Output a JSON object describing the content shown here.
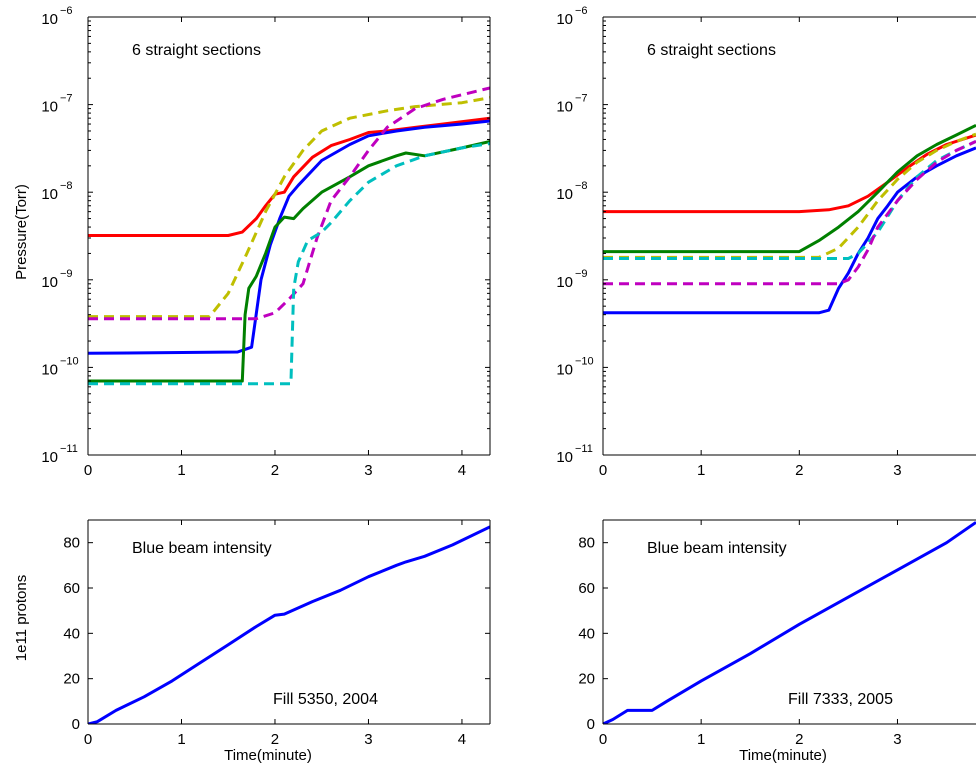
{
  "figure_colors": {
    "red": "#ff0000",
    "blue": "#0000ff",
    "green": "#008000",
    "yellow": "#bfbf00",
    "magenta": "#bf00bf",
    "cyan": "#00bfbf"
  },
  "chart_data": [
    {
      "type": "line",
      "annotation": "6 straight sections",
      "xlabel": "",
      "ylabel": "Pressure(Torr)",
      "y_scale": "log",
      "xlim": [
        0,
        4.3
      ],
      "ylim": [
        1e-11,
        1e-06
      ],
      "x_ticks": [
        "0",
        "1",
        "2",
        "3",
        "4"
      ],
      "y_ticks": [
        {
          "base": "10",
          "exp": "−6"
        },
        {
          "base": "10",
          "exp": "−7"
        },
        {
          "base": "10",
          "exp": "−8"
        },
        {
          "base": "10",
          "exp": "−9"
        },
        {
          "base": "10",
          "exp": "−10"
        },
        {
          "base": "10",
          "exp": "−11"
        }
      ],
      "series": [
        {
          "color": "#ff0000",
          "style": "solid",
          "points": [
            [
              0,
              3.2e-09
            ],
            [
              1.5,
              3.2e-09
            ],
            [
              1.65,
              3.5e-09
            ],
            [
              1.8,
              5e-09
            ],
            [
              1.9,
              7e-09
            ],
            [
              2.0,
              9.5e-09
            ],
            [
              2.1,
              1e-08
            ],
            [
              2.2,
              1.5e-08
            ],
            [
              2.4,
              2.5e-08
            ],
            [
              2.6,
              3.4e-08
            ],
            [
              2.8,
              4e-08
            ],
            [
              3.0,
              4.8e-08
            ],
            [
              3.2,
              5e-08
            ],
            [
              3.5,
              5.5e-08
            ],
            [
              3.8,
              6e-08
            ],
            [
              4.3,
              7e-08
            ]
          ]
        },
        {
          "color": "#0000ff",
          "style": "solid",
          "points": [
            [
              0,
              1.45e-10
            ],
            [
              1.6,
              1.5e-10
            ],
            [
              1.75,
              1.7e-10
            ],
            [
              1.85,
              1e-09
            ],
            [
              1.95,
              2.5e-09
            ],
            [
              2.05,
              5e-09
            ],
            [
              2.15,
              9e-09
            ],
            [
              2.25,
              1.2e-08
            ],
            [
              2.5,
              2.3e-08
            ],
            [
              2.8,
              3.5e-08
            ],
            [
              3.0,
              4.4e-08
            ],
            [
              3.3,
              5e-08
            ],
            [
              3.6,
              5.5e-08
            ],
            [
              4.0,
              6e-08
            ],
            [
              4.3,
              6.5e-08
            ]
          ]
        },
        {
          "color": "#008000",
          "style": "solid",
          "points": [
            [
              0,
              7e-11
            ],
            [
              1.65,
              7e-11
            ],
            [
              1.68,
              4e-10
            ],
            [
              1.72,
              8e-10
            ],
            [
              1.8,
              1.1e-09
            ],
            [
              1.9,
              2e-09
            ],
            [
              2.0,
              4e-09
            ],
            [
              2.1,
              5.2e-09
            ],
            [
              2.2,
              5e-09
            ],
            [
              2.3,
              6.5e-09
            ],
            [
              2.5,
              1e-08
            ],
            [
              2.8,
              1.5e-08
            ],
            [
              3.0,
              2e-08
            ],
            [
              3.3,
              2.6e-08
            ],
            [
              3.4,
              2.8e-08
            ],
            [
              3.6,
              2.6e-08
            ],
            [
              4.0,
              3.2e-08
            ],
            [
              4.3,
              3.8e-08
            ]
          ]
        },
        {
          "color": "#bfbf00",
          "style": "dashed",
          "points": [
            [
              0,
              3.8e-10
            ],
            [
              1.3,
              3.8e-10
            ],
            [
              1.5,
              7e-10
            ],
            [
              1.7,
              2e-09
            ],
            [
              1.9,
              6e-09
            ],
            [
              2.1,
              1.5e-08
            ],
            [
              2.3,
              3e-08
            ],
            [
              2.5,
              5e-08
            ],
            [
              2.8,
              7e-08
            ],
            [
              3.2,
              8.5e-08
            ],
            [
              3.5,
              9.5e-08
            ],
            [
              4.0,
              1.05e-07
            ],
            [
              4.3,
              1.2e-07
            ]
          ]
        },
        {
          "color": "#bf00bf",
          "style": "dashed",
          "points": [
            [
              0,
              3.6e-10
            ],
            [
              1.8,
              3.6e-10
            ],
            [
              2.0,
              4.2e-10
            ],
            [
              2.15,
              6e-10
            ],
            [
              2.3,
              9e-10
            ],
            [
              2.45,
              3e-09
            ],
            [
              2.6,
              8e-09
            ],
            [
              2.8,
              1.5e-08
            ],
            [
              3.0,
              3e-08
            ],
            [
              3.2,
              5.5e-08
            ],
            [
              3.5,
              9e-08
            ],
            [
              3.8,
              1.15e-07
            ],
            [
              4.3,
              1.55e-07
            ]
          ]
        },
        {
          "color": "#00bfbf",
          "style": "dashed",
          "points": [
            [
              0,
              6.5e-11
            ],
            [
              2.17,
              6.5e-11
            ],
            [
              2.2,
              8e-10
            ],
            [
              2.25,
              1.6e-09
            ],
            [
              2.35,
              2.8e-09
            ],
            [
              2.5,
              3.5e-09
            ],
            [
              2.6,
              4.5e-09
            ],
            [
              2.8,
              8e-09
            ],
            [
              3.0,
              1.3e-08
            ],
            [
              3.3,
              2e-08
            ],
            [
              3.6,
              2.6e-08
            ],
            [
              4.0,
              3.2e-08
            ],
            [
              4.3,
              3.6e-08
            ]
          ]
        }
      ]
    },
    {
      "type": "line",
      "annotation": "6 straight sections",
      "xlabel": "",
      "ylabel": "",
      "y_scale": "log",
      "xlim": [
        0,
        3.8
      ],
      "ylim": [
        1e-11,
        1e-06
      ],
      "x_ticks": [
        "0",
        "1",
        "2",
        "3"
      ],
      "y_ticks": [
        {
          "base": "10",
          "exp": "−6"
        },
        {
          "base": "10",
          "exp": "−7"
        },
        {
          "base": "10",
          "exp": "−8"
        },
        {
          "base": "10",
          "exp": "−9"
        },
        {
          "base": "10",
          "exp": "−10"
        },
        {
          "base": "10",
          "exp": "−11"
        }
      ],
      "series": [
        {
          "color": "#ff0000",
          "style": "solid",
          "points": [
            [
              0,
              6e-09
            ],
            [
              2.0,
              6e-09
            ],
            [
              2.3,
              6.3e-09
            ],
            [
              2.5,
              7e-09
            ],
            [
              2.7,
              9e-09
            ],
            [
              2.9,
              1.3e-08
            ],
            [
              3.1,
              1.9e-08
            ],
            [
              3.3,
              2.7e-08
            ],
            [
              3.5,
              3.5e-08
            ],
            [
              3.8,
              4.5e-08
            ]
          ]
        },
        {
          "color": "#0000ff",
          "style": "solid",
          "points": [
            [
              0,
              4.2e-10
            ],
            [
              2.2,
              4.2e-10
            ],
            [
              2.3,
              4.5e-10
            ],
            [
              2.4,
              8e-10
            ],
            [
              2.5,
              1.2e-09
            ],
            [
              2.6,
              2e-09
            ],
            [
              2.7,
              3e-09
            ],
            [
              2.8,
              5e-09
            ],
            [
              2.9,
              7e-09
            ],
            [
              3.0,
              1e-08
            ],
            [
              3.2,
              1.5e-08
            ],
            [
              3.4,
              2e-08
            ],
            [
              3.6,
              2.6e-08
            ],
            [
              3.8,
              3.2e-08
            ]
          ]
        },
        {
          "color": "#008000",
          "style": "solid",
          "points": [
            [
              0,
              2.1e-09
            ],
            [
              2.0,
              2.1e-09
            ],
            [
              2.2,
              2.8e-09
            ],
            [
              2.4,
              4e-09
            ],
            [
              2.6,
              6e-09
            ],
            [
              2.8,
              1e-08
            ],
            [
              3.0,
              1.7e-08
            ],
            [
              3.2,
              2.6e-08
            ],
            [
              3.4,
              3.5e-08
            ],
            [
              3.6,
              4.5e-08
            ],
            [
              3.8,
              5.8e-08
            ]
          ]
        },
        {
          "color": "#bfbf00",
          "style": "dashed",
          "points": [
            [
              0,
              1.8e-09
            ],
            [
              2.2,
              1.8e-09
            ],
            [
              2.4,
              2.3e-09
            ],
            [
              2.6,
              4e-09
            ],
            [
              2.8,
              8e-09
            ],
            [
              3.0,
              1.4e-08
            ],
            [
              3.2,
              2.2e-08
            ],
            [
              3.4,
              3e-08
            ],
            [
              3.6,
              3.8e-08
            ],
            [
              3.8,
              4.6e-08
            ]
          ]
        },
        {
          "color": "#00bfbf",
          "style": "dashed",
          "points": [
            [
              0,
              1.75e-09
            ],
            [
              2.5,
              1.75e-09
            ],
            [
              2.6,
              2e-09
            ],
            [
              2.8,
              3.5e-09
            ],
            [
              3.0,
              8e-09
            ],
            [
              3.2,
              1.5e-08
            ],
            [
              3.4,
              2.3e-08
            ],
            [
              3.6,
              3e-08
            ],
            [
              3.8,
              3.8e-08
            ]
          ]
        },
        {
          "color": "#bf00bf",
          "style": "dashed",
          "points": [
            [
              0,
              9e-10
            ],
            [
              2.4,
              9e-10
            ],
            [
              2.5,
              1e-09
            ],
            [
              2.6,
              1.4e-09
            ],
            [
              2.7,
              2.2e-09
            ],
            [
              2.8,
              4e-09
            ],
            [
              3.0,
              8e-09
            ],
            [
              3.2,
              1.4e-08
            ],
            [
              3.4,
              2.2e-08
            ],
            [
              3.6,
              3e-08
            ],
            [
              3.8,
              3.8e-08
            ]
          ]
        }
      ]
    },
    {
      "type": "line",
      "annotation": "Blue beam intensity",
      "annotation2": "Fill 5350, 2004",
      "xlabel": "Time(minute)",
      "ylabel": "1e11 protons",
      "y_scale": "linear",
      "xlim": [
        0,
        4.3
      ],
      "ylim": [
        0,
        90
      ],
      "x_ticks": [
        "0",
        "1",
        "2",
        "3",
        "4"
      ],
      "y_ticks": [
        "0",
        "20",
        "40",
        "60",
        "80"
      ],
      "series": [
        {
          "color": "#0000ff",
          "style": "solid",
          "points": [
            [
              0,
              0
            ],
            [
              0.1,
              1
            ],
            [
              0.3,
              6
            ],
            [
              0.6,
              12
            ],
            [
              0.9,
              19
            ],
            [
              1.2,
              27
            ],
            [
              1.5,
              35
            ],
            [
              1.8,
              43
            ],
            [
              2.0,
              48
            ],
            [
              2.1,
              48.5
            ],
            [
              2.4,
              54
            ],
            [
              2.7,
              59
            ],
            [
              3.0,
              65
            ],
            [
              3.3,
              70
            ],
            [
              3.4,
              71.5
            ],
            [
              3.6,
              74
            ],
            [
              3.9,
              79
            ],
            [
              4.3,
              87
            ]
          ]
        }
      ]
    },
    {
      "type": "line",
      "annotation": "Blue beam intensity",
      "annotation2": "Fill 7333, 2005",
      "xlabel": "Time(minute)",
      "ylabel": "",
      "y_scale": "linear",
      "xlim": [
        0,
        3.8
      ],
      "ylim": [
        0,
        90
      ],
      "x_ticks": [
        "0",
        "1",
        "2",
        "3"
      ],
      "y_ticks": [
        "0",
        "20",
        "40",
        "60",
        "80"
      ],
      "series": [
        {
          "color": "#0000ff",
          "style": "solid",
          "points": [
            [
              0,
              0
            ],
            [
              0.1,
              2
            ],
            [
              0.25,
              6
            ],
            [
              0.5,
              6
            ],
            [
              0.65,
              10
            ],
            [
              1.0,
              19
            ],
            [
              1.5,
              31
            ],
            [
              2.0,
              44
            ],
            [
              2.5,
              56
            ],
            [
              3.0,
              68
            ],
            [
              3.5,
              80
            ],
            [
              3.8,
              89
            ]
          ]
        }
      ]
    }
  ]
}
